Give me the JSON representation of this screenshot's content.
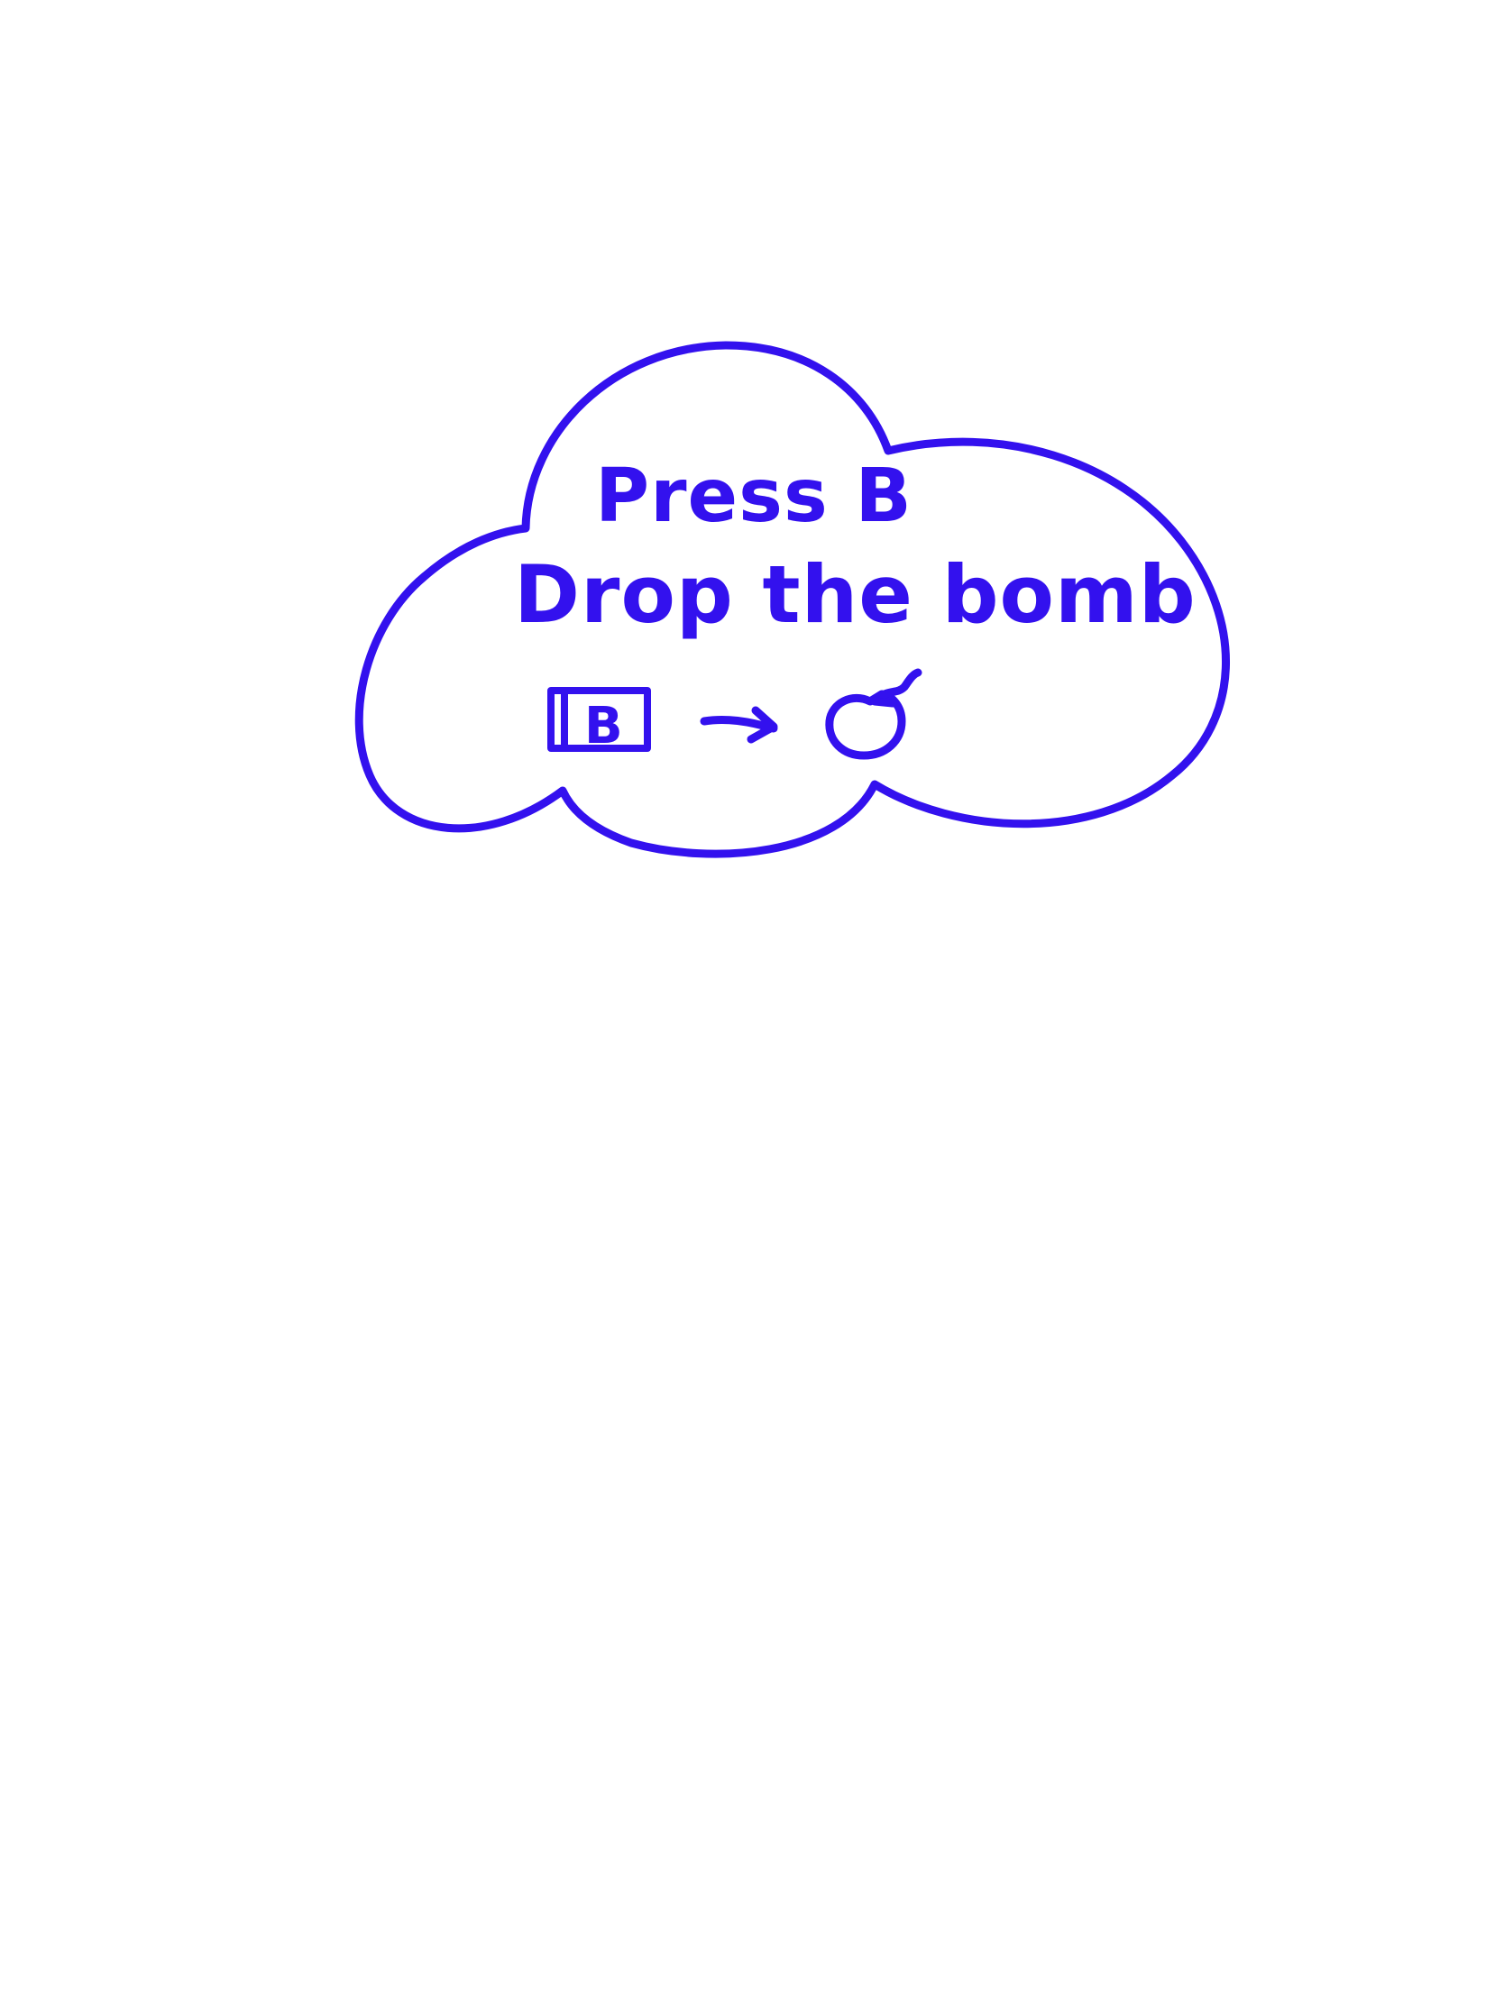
{
  "colors": {
    "ink": "#3311ee",
    "background": "#ffffff"
  },
  "note": {
    "line1": "Press B",
    "line2": "Drop the bomb",
    "key_label": "B",
    "arrow_icon": "arrow-right-icon",
    "bomb_icon": "bomb-icon"
  }
}
